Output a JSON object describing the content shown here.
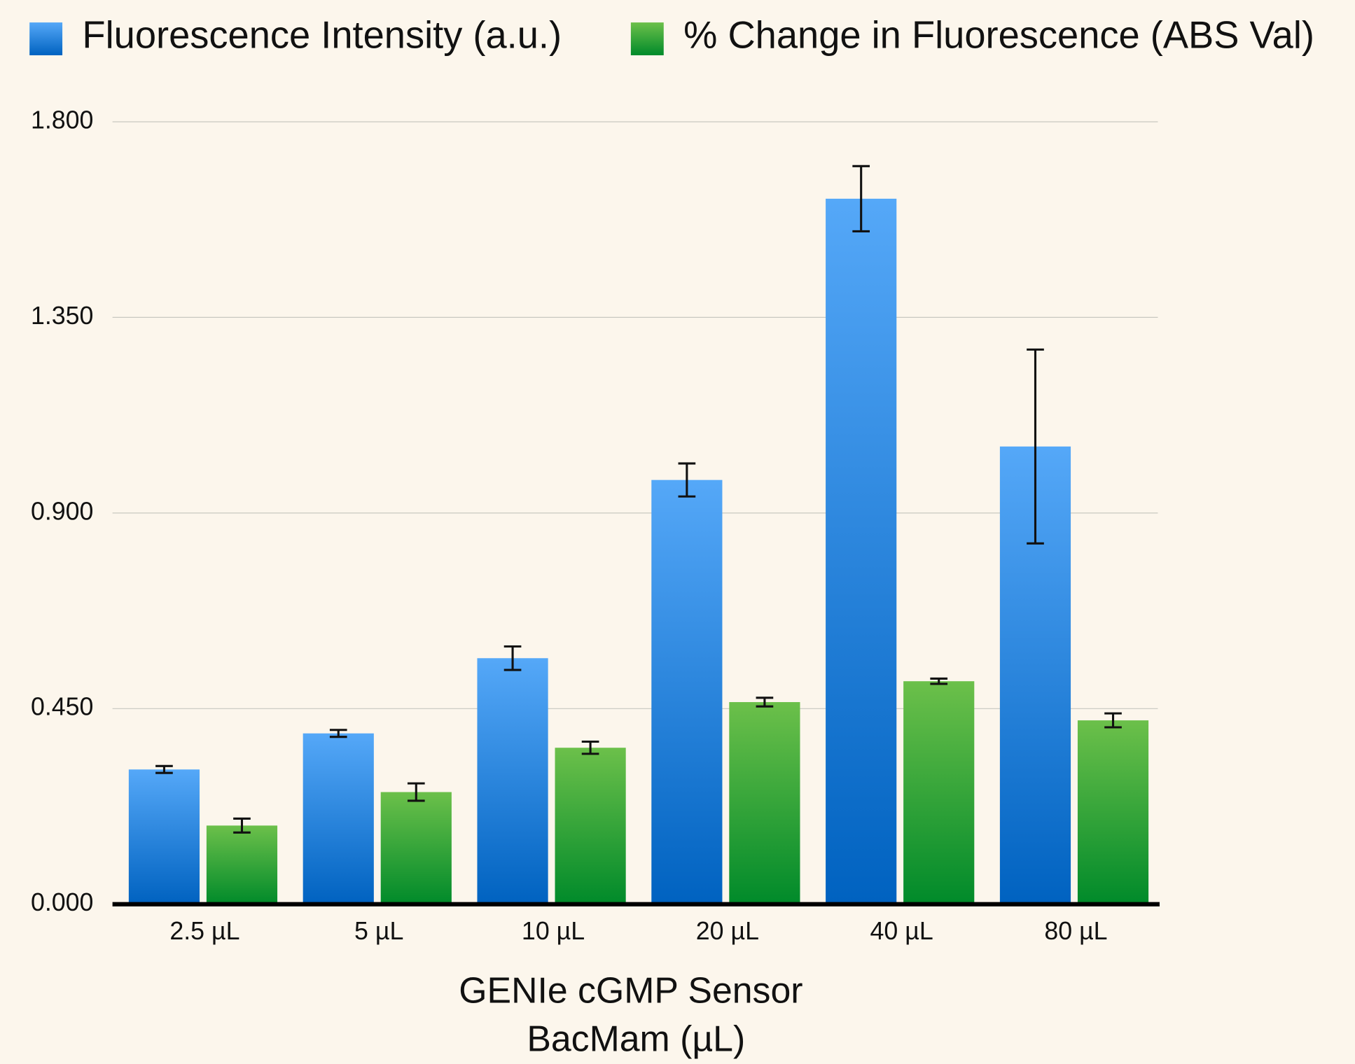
{
  "chart_data": {
    "type": "bar",
    "x_label_lines": [
      "GENIe cGMP Sensor",
      "BacMam (µL)"
    ],
    "categories": [
      "2.5 µL",
      "5 µL",
      "10 µL",
      "20 µL",
      "40 µL",
      "80 µL"
    ],
    "series": [
      {
        "name": "Fluorescence Intensity (a.u.)",
        "colors": [
          "#55a8f8",
          "#0062c0"
        ],
        "values": [
          0.31,
          0.393,
          0.566,
          0.976,
          1.623,
          1.053
        ],
        "errors": [
          0.008,
          0.008,
          0.027,
          0.038,
          0.075,
          0.223
        ]
      },
      {
        "name": "% Change in Fluorescence (ABS Val)",
        "colors": [
          "#6cc04a",
          "#008a2a"
        ],
        "values": [
          0.181,
          0.258,
          0.36,
          0.465,
          0.513,
          0.423
        ],
        "errors": [
          0.016,
          0.02,
          0.014,
          0.01,
          0.006,
          0.016
        ]
      }
    ],
    "ylim": [
      0,
      1.8
    ],
    "yticks": [
      {
        "value": 0,
        "label": "0.000"
      },
      {
        "value": 0.45,
        "label": "0.450"
      },
      {
        "value": 0.9,
        "label": "0.900"
      },
      {
        "value": 1.35,
        "label": "1.350"
      },
      {
        "value": 1.8,
        "label": "1.800"
      }
    ],
    "grid": true
  }
}
